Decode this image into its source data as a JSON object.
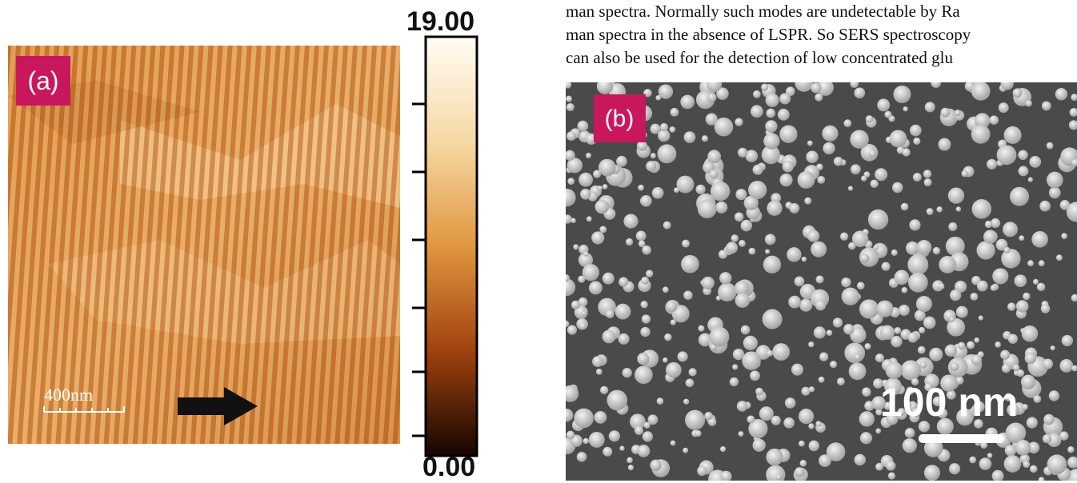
{
  "figure_a": {
    "panel_label": "(a)",
    "scale_bar": "400nm",
    "colorbar": {
      "max_label": "19.00",
      "min_label": "0.00"
    }
  },
  "figure_b": {
    "panel_label": "(b)",
    "scale_bar": "100 nm"
  },
  "body_text": {
    "lines": [
      "man spectra. Normally such modes are undetectable by Ra",
      "man spectra in the absence of LSPR. So SERS spectroscopy",
      "can also be used for the detection of low concentrated glu"
    ]
  }
}
